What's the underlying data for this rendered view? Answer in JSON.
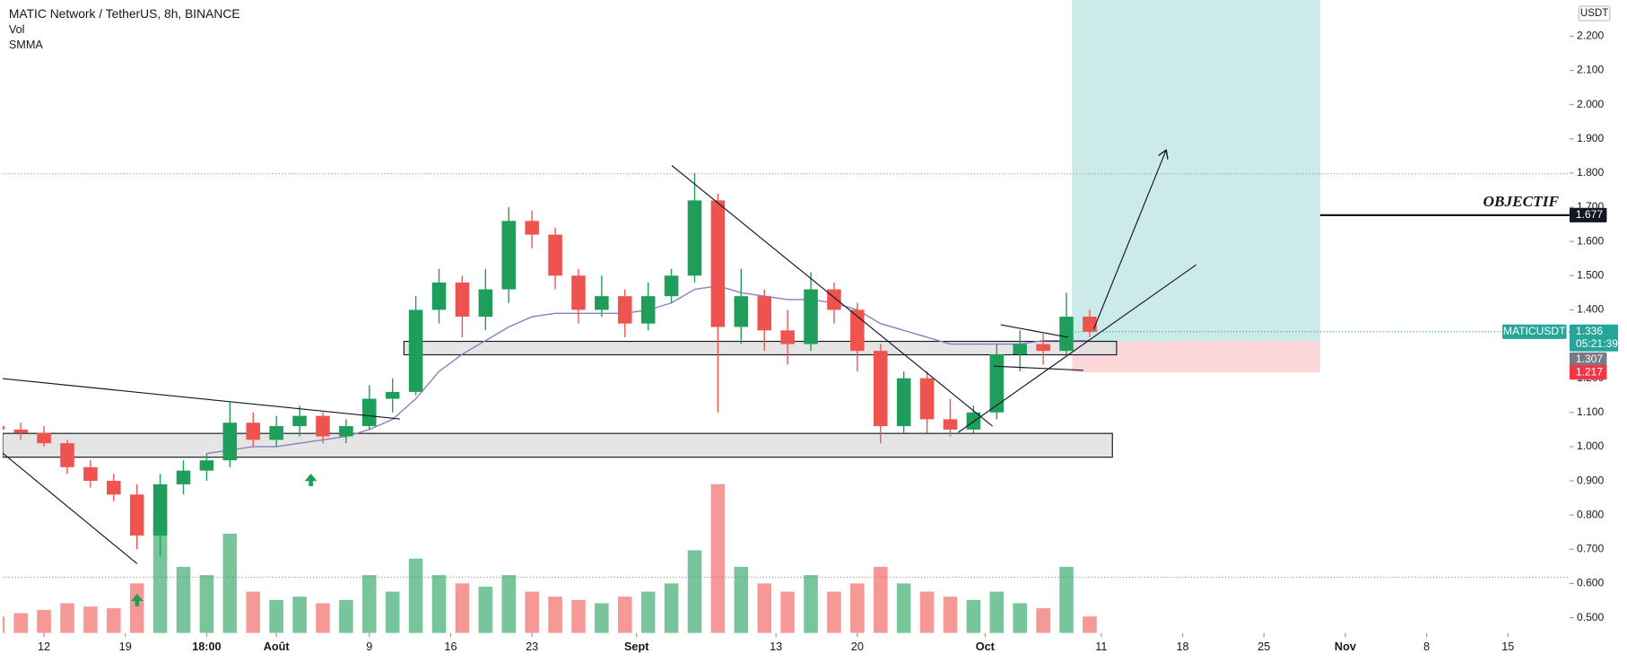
{
  "chart_data": {
    "type": "candlestick",
    "title": "MATIC Network / TetherUS, 8h, BINANCE",
    "indicators": [
      "Vol",
      "SMMA"
    ],
    "currency": "USDT",
    "xticks": [
      {
        "value": 0,
        "label": "12"
      },
      {
        "value": 7,
        "label": "19"
      },
      {
        "value": 14,
        "label": "18:00"
      },
      {
        "value": 20,
        "label": "Août"
      },
      {
        "value": 28,
        "label": "9"
      },
      {
        "value": 35,
        "label": "16"
      },
      {
        "value": 42,
        "label": "23"
      },
      {
        "value": 51,
        "label": "Sept"
      },
      {
        "value": 63,
        "label": "13"
      },
      {
        "value": 70,
        "label": "20"
      },
      {
        "value": 81,
        "label": "Oct"
      },
      {
        "value": 91,
        "label": "11"
      },
      {
        "value": 98,
        "label": "18"
      },
      {
        "value": 105,
        "label": "25"
      },
      {
        "value": 112,
        "label": "Nov"
      },
      {
        "value": 119,
        "label": "8"
      },
      {
        "value": 126,
        "label": "15"
      }
    ],
    "xlim": [
      -3.56,
      131.3
    ],
    "ylim": [
      0.455,
      2.306
    ],
    "yticks": [
      {
        "value": 0.5,
        "label": "0.500"
      },
      {
        "value": 0.6,
        "label": "0.600"
      },
      {
        "value": 0.7,
        "label": "0.700"
      },
      {
        "value": 0.8,
        "label": "0.800"
      },
      {
        "value": 0.9,
        "label": "0.900"
      },
      {
        "value": 1.0,
        "label": "1.000"
      },
      {
        "value": 1.1,
        "label": "1.100"
      },
      {
        "value": 1.2,
        "label": "1.200"
      },
      {
        "value": 1.3,
        "label": "1.300"
      },
      {
        "value": 1.4,
        "label": "1.400"
      },
      {
        "value": 1.5,
        "label": "1.500"
      },
      {
        "value": 1.6,
        "label": "1.600"
      },
      {
        "value": 1.7,
        "label": "1.700"
      },
      {
        "value": 1.8,
        "label": "1.800"
      },
      {
        "value": 1.9,
        "label": "1.900"
      },
      {
        "value": 2.0,
        "label": "2.000"
      },
      {
        "value": 2.1,
        "label": "2.100"
      },
      {
        "value": 2.2,
        "label": "2.200"
      }
    ],
    "up_color": "#1e9e5a",
    "down_color": "#ef5350",
    "smma_color": "#8e7cc3",
    "volume_lim": [
      0,
      100
    ],
    "x": [
      -4,
      -2,
      0,
      2,
      4,
      6,
      8,
      10,
      12,
      14,
      16,
      18,
      20,
      22,
      24,
      26,
      28,
      30,
      32,
      34,
      36,
      38,
      40,
      42,
      44,
      46,
      48,
      50,
      52,
      54,
      56,
      58,
      60,
      62,
      64,
      66,
      68,
      70,
      72,
      74,
      76,
      78,
      80,
      82,
      84,
      86,
      88,
      90
    ],
    "open": [
      1.06,
      1.05,
      1.04,
      1.01,
      0.94,
      0.9,
      0.86,
      0.74,
      0.89,
      0.93,
      0.96,
      1.07,
      1.02,
      1.06,
      1.09,
      1.03,
      1.06,
      1.14,
      1.16,
      1.4,
      1.48,
      1.38,
      1.46,
      1.66,
      1.62,
      1.5,
      1.4,
      1.44,
      1.36,
      1.44,
      1.5,
      1.72,
      1.35,
      1.44,
      1.34,
      1.3,
      1.46,
      1.4,
      1.28,
      1.06,
      1.2,
      1.08,
      1.05,
      1.1,
      1.27,
      1.3,
      1.28,
      1.38
    ],
    "high": [
      1.08,
      1.07,
      1.06,
      1.02,
      0.96,
      0.92,
      0.89,
      0.92,
      0.96,
      0.98,
      1.13,
      1.1,
      1.09,
      1.12,
      1.1,
      1.08,
      1.18,
      1.2,
      1.44,
      1.52,
      1.5,
      1.52,
      1.7,
      1.69,
      1.64,
      1.52,
      1.5,
      1.46,
      1.48,
      1.52,
      1.8,
      1.74,
      1.52,
      1.46,
      1.4,
      1.51,
      1.48,
      1.42,
      1.3,
      1.22,
      1.22,
      1.14,
      1.12,
      1.3,
      1.34,
      1.33,
      1.45,
      1.4
    ],
    "low": [
      1.04,
      1.02,
      1.0,
      0.92,
      0.88,
      0.84,
      0.7,
      0.68,
      0.86,
      0.9,
      0.94,
      1.0,
      1.0,
      1.03,
      1.01,
      1.01,
      1.05,
      1.1,
      1.15,
      1.36,
      1.32,
      1.34,
      1.42,
      1.58,
      1.46,
      1.36,
      1.38,
      1.32,
      1.34,
      1.42,
      1.48,
      1.1,
      1.3,
      1.28,
      1.24,
      1.28,
      1.36,
      1.22,
      1.01,
      1.04,
      1.04,
      1.03,
      1.04,
      1.08,
      1.22,
      1.24,
      1.27,
      1.32
    ],
    "close": [
      1.05,
      1.04,
      1.01,
      0.94,
      0.9,
      0.86,
      0.74,
      0.89,
      0.93,
      0.96,
      1.07,
      1.02,
      1.06,
      1.09,
      1.03,
      1.06,
      1.14,
      1.16,
      1.4,
      1.48,
      1.38,
      1.46,
      1.66,
      1.62,
      1.5,
      1.4,
      1.44,
      1.36,
      1.44,
      1.5,
      1.72,
      1.35,
      1.44,
      1.34,
      1.3,
      1.46,
      1.4,
      1.28,
      1.06,
      1.2,
      1.08,
      1.05,
      1.1,
      1.27,
      1.3,
      1.28,
      1.38,
      1.336
    ],
    "volume": [
      10,
      12,
      14,
      18,
      16,
      15,
      30,
      70,
      40,
      35,
      60,
      25,
      20,
      22,
      18,
      20,
      35,
      25,
      45,
      35,
      30,
      28,
      35,
      25,
      22,
      20,
      18,
      22,
      25,
      30,
      50,
      90,
      40,
      30,
      25,
      35,
      25,
      30,
      40,
      30,
      25,
      22,
      20,
      25,
      18,
      15,
      40,
      10
    ],
    "smma": [
      null,
      null,
      null,
      null,
      null,
      null,
      null,
      null,
      null,
      0.98,
      0.99,
      1.0,
      1.0,
      1.01,
      1.02,
      1.03,
      1.05,
      1.08,
      1.14,
      1.22,
      1.27,
      1.31,
      1.35,
      1.38,
      1.39,
      1.39,
      1.39,
      1.39,
      1.4,
      1.42,
      1.46,
      1.47,
      1.45,
      1.44,
      1.43,
      1.43,
      1.42,
      1.4,
      1.36,
      1.34,
      1.32,
      1.3,
      1.3,
      1.3,
      1.3,
      1.31,
      1.31,
      1.31
    ],
    "symbol_label": "MATICUSDT",
    "last_price": {
      "value": 1.336,
      "label": "1.336"
    },
    "countdown": "05:21:39",
    "entry": {
      "value": 1.307,
      "label": "1.307"
    },
    "stop": {
      "value": 1.217,
      "label": "1.217"
    },
    "target": {
      "value": 1.677,
      "label": "1.677"
    },
    "target_text": "OBJECTIF"
  }
}
